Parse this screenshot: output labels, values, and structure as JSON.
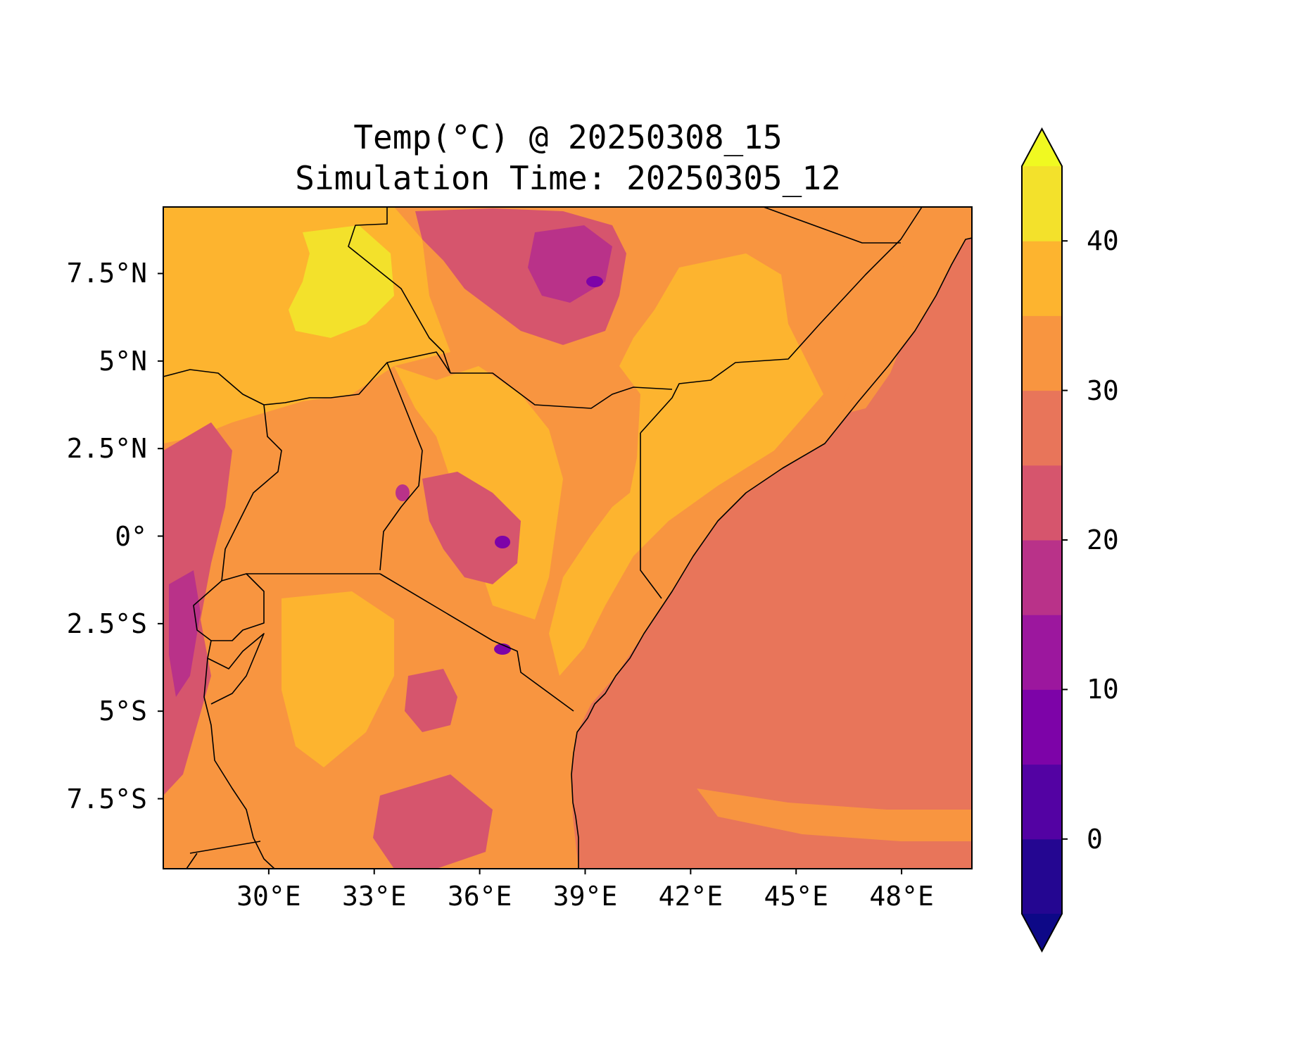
{
  "title": {
    "line1": "Temp(°C) @ 20250308_15",
    "line2": "Simulation Time: 20250305_12"
  },
  "map": {
    "extent_lon": [
      27,
      50
    ],
    "extent_lat": [
      -9.5,
      9.4
    ],
    "x_ticks": [
      {
        "lon": 30,
        "label": "30°E"
      },
      {
        "lon": 33,
        "label": "33°E"
      },
      {
        "lon": 36,
        "label": "36°E"
      },
      {
        "lon": 39,
        "label": "39°E"
      },
      {
        "lon": 42,
        "label": "42°E"
      },
      {
        "lon": 45,
        "label": "45°E"
      },
      {
        "lon": 48,
        "label": "48°E"
      }
    ],
    "y_ticks": [
      {
        "lat": 7.5,
        "label": "7.5°N"
      },
      {
        "lat": 5,
        "label": "5°N"
      },
      {
        "lat": 2.5,
        "label": "2.5°N"
      },
      {
        "lat": 0,
        "label": "0°"
      },
      {
        "lat": -2.5,
        "label": "2.5°S"
      },
      {
        "lat": -5,
        "label": "5°S"
      },
      {
        "lat": -7.5,
        "label": "7.5°S"
      }
    ],
    "variable": "2m temperature",
    "units": "°C",
    "ocean_value": 27.5,
    "colors": {
      "ocean": "#e8755a",
      "land_hot": "#f89540",
      "land_warm": "#fdb42f",
      "land_hottest": "#f3e12b",
      "highland": "#d6556d",
      "highland_cold": "#b93289",
      "peak": "#7d03a8",
      "border": "#000000"
    }
  },
  "colorbar": {
    "min": -5,
    "max": 45,
    "step": 5,
    "extend": "both",
    "ticks": [
      {
        "value": 0,
        "label": "0"
      },
      {
        "value": 10,
        "label": "10"
      },
      {
        "value": 20,
        "label": "20"
      },
      {
        "value": 30,
        "label": "30"
      },
      {
        "value": 40,
        "label": "40"
      }
    ],
    "under_color": "#0d0887",
    "over_color": "#f0f921",
    "levels": [
      {
        "from": -5,
        "to": 0,
        "color": "#240691"
      },
      {
        "from": 0,
        "to": 5,
        "color": "#5302a3"
      },
      {
        "from": 5,
        "to": 10,
        "color": "#7d03a8"
      },
      {
        "from": 10,
        "to": 15,
        "color": "#9c179e"
      },
      {
        "from": 15,
        "to": 20,
        "color": "#b93289"
      },
      {
        "from": 20,
        "to": 25,
        "color": "#d6556d"
      },
      {
        "from": 25,
        "to": 30,
        "color": "#e8755a"
      },
      {
        "from": 30,
        "to": 35,
        "color": "#f89540"
      },
      {
        "from": 35,
        "to": 40,
        "color": "#fdb42f"
      },
      {
        "from": 40,
        "to": 45,
        "color": "#f3e12b"
      }
    ]
  }
}
